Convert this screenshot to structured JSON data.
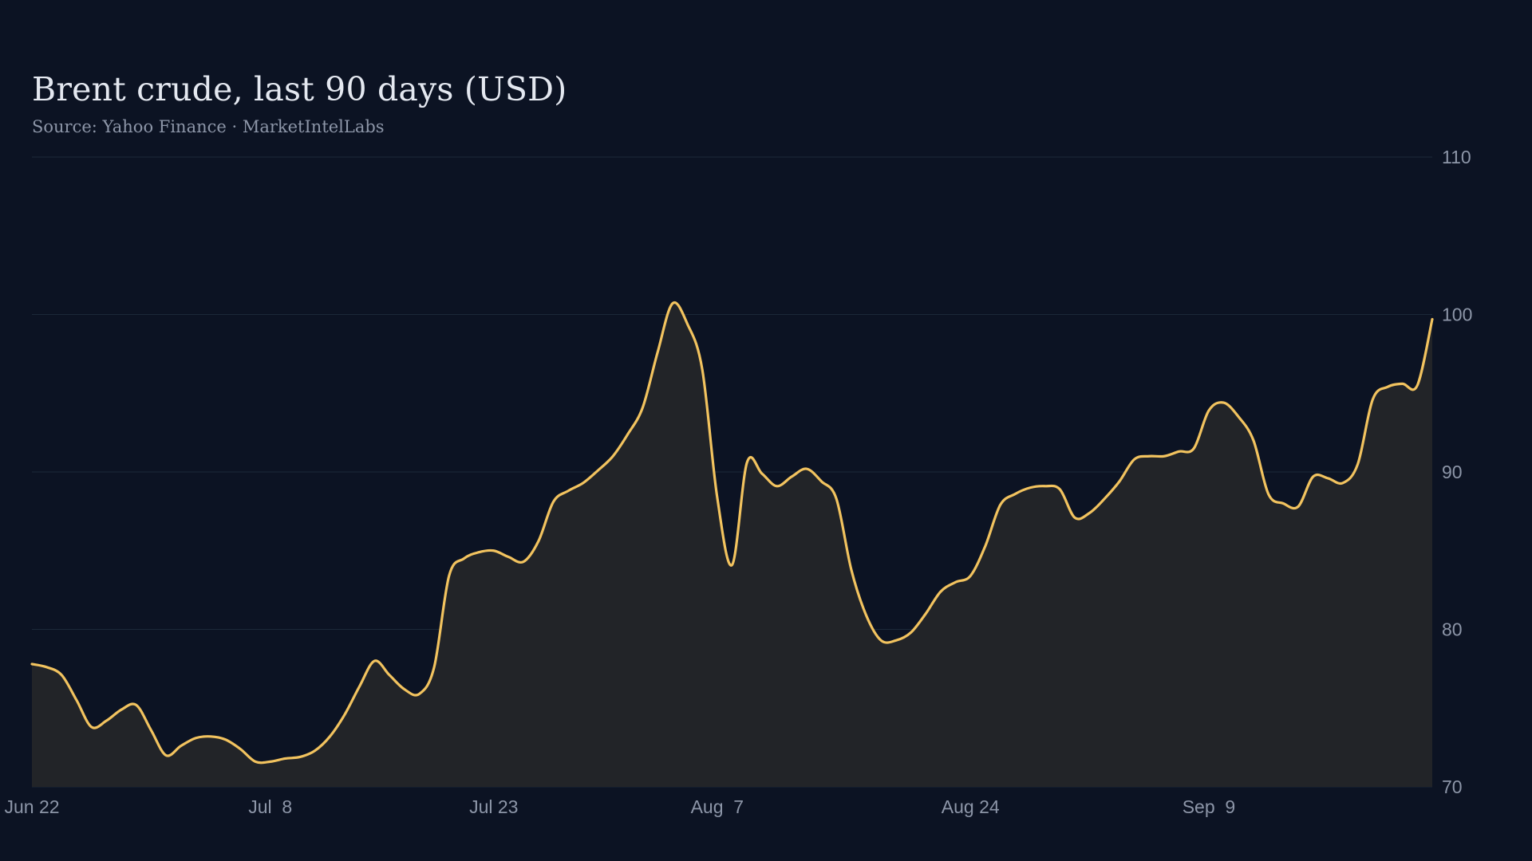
{
  "title": "Brent crude, last 90 days (USD)",
  "subtitle": "Source: Yahoo Finance · MarketIntelLabs",
  "colors": {
    "background": "#0c1323",
    "line": "#f2c35f",
    "area": "#222428",
    "grid": "#1c2838",
    "text": "#8d96a8",
    "title": "#e4e8f0"
  },
  "chart_data": {
    "type": "area",
    "title": "Brent crude, last 90 days (USD)",
    "subtitle": "Source: Yahoo Finance · MarketIntelLabs",
    "xlabel": "",
    "ylabel": "",
    "ylim": [
      70,
      110
    ],
    "yticks": [
      70,
      80,
      90,
      100,
      110
    ],
    "ytick_labels": [
      "70",
      "80",
      "90",
      "100",
      "110"
    ],
    "y_axis_position": "right",
    "grid": true,
    "xlim": [
      "Jun 22",
      "Sep 24"
    ],
    "xticks": [
      "Jun 22",
      "Jul 8",
      "Jul 23",
      "Aug 7",
      "Aug 24",
      "Sep 9"
    ],
    "xtick_labels": [
      "Jun 22",
      "Jul  8",
      "Jul 23",
      "Aug  7",
      "Aug 24",
      "Sep  9"
    ],
    "series": [
      {
        "x": [
          "Jun 22",
          "Jun 23",
          "Jun 24",
          "Jun 25",
          "Jun 26",
          "Jun 27",
          "Jun 28",
          "Jun 29",
          "Jun 30",
          "Jul 1",
          "Jul 2",
          "Jul 3",
          "Jul 4",
          "Jul 5",
          "Jul 6",
          "Jul 7",
          "Jul 8",
          "Jul 9",
          "Jul 10",
          "Jul 11",
          "Jul 12",
          "Jul 13",
          "Jul 14",
          "Jul 15",
          "Jul 16",
          "Jul 17",
          "Jul 18",
          "Jul 19",
          "Jul 20",
          "Jul 21",
          "Jul 22",
          "Jul 23",
          "Jul 24",
          "Jul 25",
          "Jul 26",
          "Jul 27",
          "Jul 28",
          "Jul 29",
          "Jul 30",
          "Jul 31",
          "Aug 1",
          "Aug 2",
          "Aug 3",
          "Aug 4",
          "Aug 5",
          "Aug 6",
          "Aug 7",
          "Aug 8",
          "Aug 9",
          "Aug 10",
          "Aug 11",
          "Aug 12",
          "Aug 13",
          "Aug 14",
          "Aug 15",
          "Aug 16",
          "Aug 17",
          "Aug 18",
          "Aug 19",
          "Aug 20",
          "Aug 21",
          "Aug 22",
          "Aug 23",
          "Aug 24",
          "Aug 25",
          "Aug 26",
          "Aug 27",
          "Aug 28",
          "Aug 29",
          "Aug 30",
          "Aug 31",
          "Sep 1",
          "Sep 2",
          "Sep 3",
          "Sep 4",
          "Sep 5",
          "Sep 6",
          "Sep 7",
          "Sep 8",
          "Sep 9",
          "Sep 10",
          "Sep 11",
          "Sep 12",
          "Sep 13",
          "Sep 14",
          "Sep 15",
          "Sep 16",
          "Sep 17",
          "Sep 18",
          "Sep 19",
          "Sep 20",
          "Sep 21",
          "Sep 22",
          "Sep 23",
          "Sep 24"
        ],
        "values": [
          77.8,
          77.6,
          77.1,
          75.5,
          73.8,
          74.2,
          74.9,
          75.2,
          73.6,
          72.0,
          72.6,
          73.1,
          73.2,
          73.0,
          72.4,
          71.6,
          71.6,
          71.8,
          71.9,
          72.3,
          73.2,
          74.6,
          76.4,
          78.0,
          77.1,
          76.2,
          75.9,
          77.6,
          83.4,
          84.5,
          84.9,
          85.0,
          84.6,
          84.3,
          85.6,
          88.1,
          88.8,
          89.3,
          90.1,
          91.0,
          92.4,
          94.1,
          97.6,
          100.7,
          99.4,
          96.5,
          88.4,
          84.1,
          90.6,
          89.9,
          89.1,
          89.7,
          90.2,
          89.4,
          88.3,
          83.8,
          80.9,
          79.3,
          79.3,
          79.8,
          81.0,
          82.4,
          83.0,
          83.4,
          85.3,
          87.9,
          88.6,
          89.0,
          89.1,
          88.9,
          87.1,
          87.4,
          88.3,
          89.4,
          90.8,
          91.0,
          91.0,
          91.3,
          91.5,
          93.9,
          94.4,
          93.5,
          92.0,
          88.6,
          88.0,
          87.8,
          89.7,
          89.6,
          89.3,
          90.5,
          94.6,
          95.4,
          95.6,
          95.5,
          99.7
        ]
      }
    ]
  }
}
